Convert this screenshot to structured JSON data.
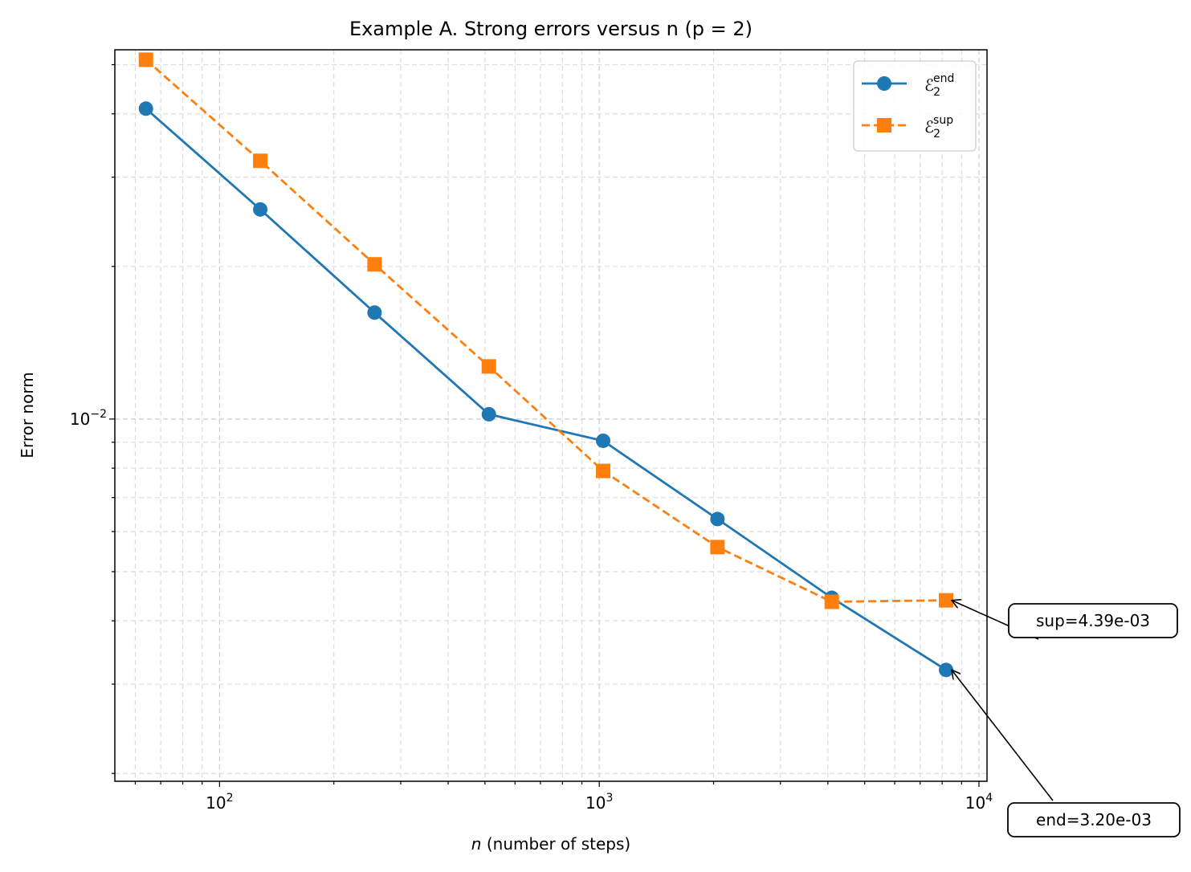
{
  "chart_data": {
    "type": "line",
    "title": "Example A. Strong errors versus n (p = 2)",
    "xlabel_var": "n",
    "xlabel_rest": " (number of steps)",
    "ylabel": "Error norm",
    "xscale": "log",
    "yscale": "log",
    "xlim": [
      53,
      10500
    ],
    "ylim": [
      0.00193,
      0.0535
    ],
    "grid": true,
    "legend_position": "upper right",
    "x": [
      64,
      128,
      256,
      512,
      1024,
      2048,
      4096,
      8192
    ],
    "series": [
      {
        "name": "ℰ",
        "name_sup": "end",
        "name_sub": "2",
        "color": "#1f77b4",
        "marker": "circle",
        "linestyle": "solid",
        "values": [
          0.04095,
          0.02591,
          0.01622,
          0.01022,
          0.00906,
          0.00635,
          0.00444,
          0.0032
        ]
      },
      {
        "name": "ℰ",
        "name_sup": "sup",
        "name_sub": "2",
        "color": "#ff7f0e",
        "marker": "square",
        "linestyle": "dashed",
        "values": [
          0.05114,
          0.03231,
          0.02019,
          0.0127,
          0.0079,
          0.00559,
          0.00436,
          0.00439
        ]
      }
    ],
    "x_tick_labels": [
      {
        "base": "10",
        "exp": "2",
        "value": 100
      },
      {
        "base": "10",
        "exp": "3",
        "value": 1000
      },
      {
        "base": "10",
        "exp": "4",
        "value": 10000
      }
    ],
    "y_tick_labels": [
      {
        "base": "10",
        "exp": "−2",
        "value": 0.01
      }
    ],
    "annotations": [
      {
        "text": "sup=4.39e-03",
        "series": 1,
        "index": 7
      },
      {
        "text": "end=3.20e-03",
        "series": 0,
        "index": 7
      }
    ]
  }
}
